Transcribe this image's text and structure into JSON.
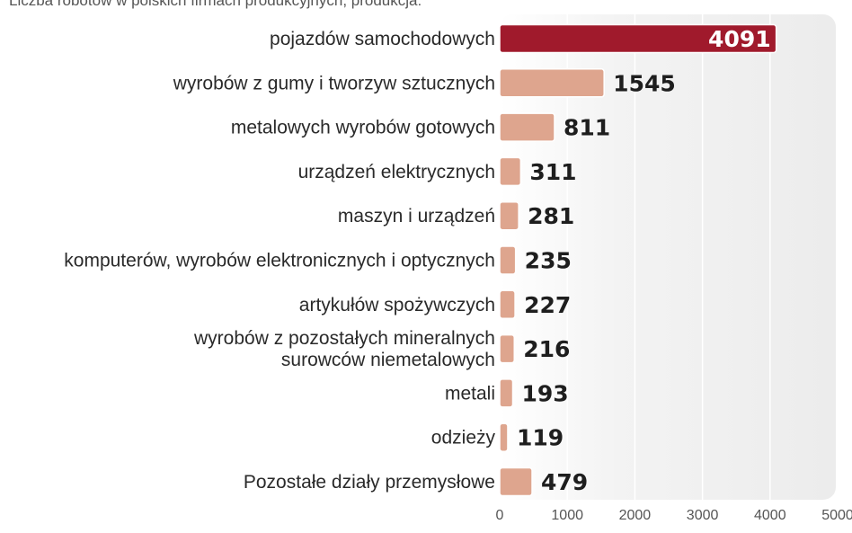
{
  "chart_data": {
    "type": "bar",
    "orientation": "horizontal",
    "title": "",
    "subtitle": "Liczba robotów w polskich firmach produkcyjnych, produkcja:",
    "xlabel": "",
    "ylabel": "",
    "xlim": [
      0,
      5000
    ],
    "x_ticks": [
      0,
      1000,
      2000,
      3000,
      4000,
      5000
    ],
    "grid": true,
    "legend": "none",
    "categories": [
      [
        "pojazdów samochodowych"
      ],
      [
        "wyrobów z gumy i tworzyw sztucznych"
      ],
      [
        "metalowych wyrobów gotowych"
      ],
      [
        "urządzeń elektrycznych"
      ],
      [
        "maszyn i urządzeń"
      ],
      [
        "komputerów, wyrobów elektronicznych i optycznych"
      ],
      [
        "artykułów spożywczych"
      ],
      [
        "wyrobów z pozostałych mineralnych",
        "surowców niemetalowych"
      ],
      [
        "metali"
      ],
      [
        "odzieży"
      ],
      [
        "Pozostałe działy przemysłowe"
      ]
    ],
    "values": [
      4091,
      1545,
      811,
      311,
      281,
      235,
      227,
      216,
      193,
      119,
      479
    ],
    "colors": {
      "highlight": "#a01a2c",
      "bar": "#dea58e",
      "bar_border": "#ffffff",
      "plot_background": "#f0f0f0",
      "grid": "#ffffff"
    }
  }
}
